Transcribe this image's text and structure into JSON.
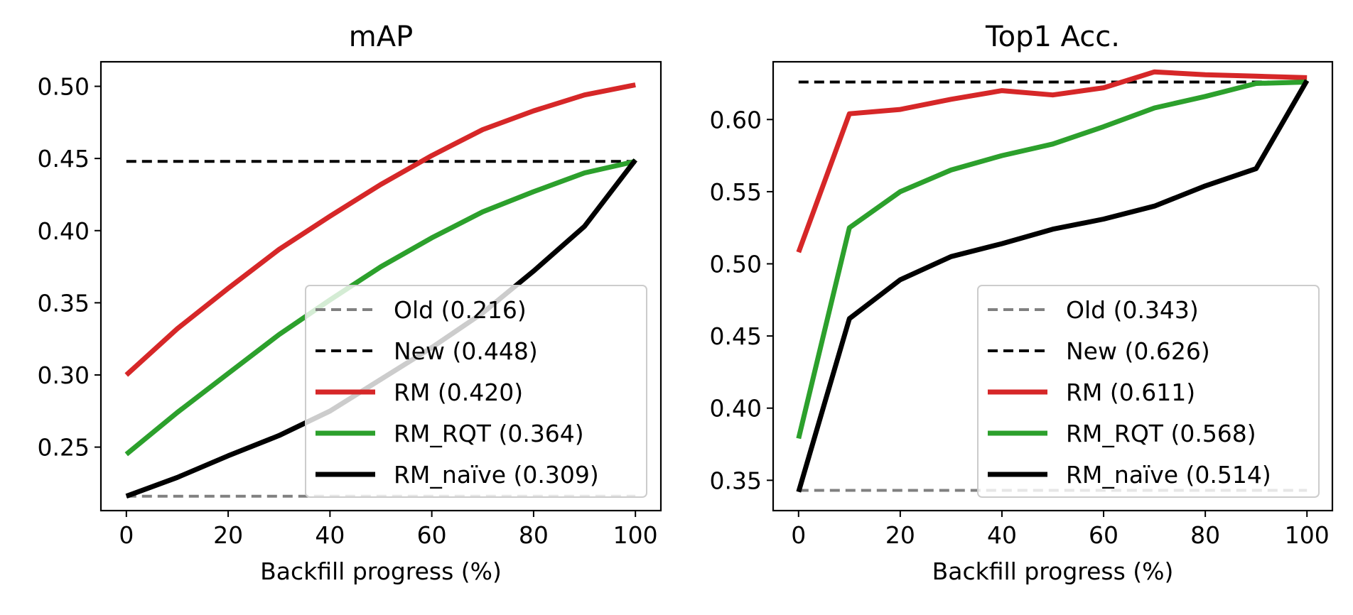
{
  "chart_data": [
    {
      "type": "line",
      "title": "mAP",
      "xlabel": "Backfill progress (%)",
      "ylabel": "",
      "xlim": [
        -5,
        105
      ],
      "ylim": [
        0.206,
        0.517
      ],
      "xticks": [
        0,
        20,
        40,
        60,
        80,
        100
      ],
      "xtick_labels": [
        "0",
        "20",
        "40",
        "60",
        "80",
        "100"
      ],
      "yticks": [
        0.25,
        0.3,
        0.35,
        0.4,
        0.45,
        0.5
      ],
      "ytick_labels": [
        "0.25",
        "0.30",
        "0.35",
        "0.40",
        "0.45",
        "0.50"
      ],
      "grid": false,
      "legend_position": "lower-right",
      "series": [
        {
          "name": "Old (0.216)",
          "color": "#808080",
          "style": "dashed",
          "width": "thin",
          "x": [
            0,
            100
          ],
          "y": [
            0.216,
            0.216
          ]
        },
        {
          "name": "New (0.448)",
          "color": "#000000",
          "style": "dashed",
          "width": "thin",
          "x": [
            0,
            100
          ],
          "y": [
            0.448,
            0.448
          ]
        },
        {
          "name": "RM (0.420)",
          "color": "#d62728",
          "style": "solid",
          "width": "thick",
          "x": [
            0,
            10,
            20,
            30,
            40,
            50,
            60,
            70,
            80,
            90,
            100
          ],
          "y": [
            0.3,
            0.332,
            0.36,
            0.387,
            0.41,
            0.432,
            0.452,
            0.47,
            0.483,
            0.494,
            0.501
          ]
        },
        {
          "name": "RM_RQT (0.364)",
          "color": "#2ca02c",
          "style": "solid",
          "width": "thick",
          "x": [
            0,
            10,
            20,
            30,
            40,
            50,
            60,
            70,
            80,
            90,
            100
          ],
          "y": [
            0.245,
            0.274,
            0.301,
            0.328,
            0.352,
            0.375,
            0.395,
            0.413,
            0.427,
            0.44,
            0.448
          ]
        },
        {
          "name": "RM_naïve (0.309)",
          "color": "#000000",
          "style": "solid",
          "width": "thick",
          "x": [
            0,
            10,
            20,
            30,
            40,
            50,
            60,
            70,
            80,
            90,
            100
          ],
          "y": [
            0.216,
            0.229,
            0.244,
            0.258,
            0.275,
            0.297,
            0.319,
            0.343,
            0.372,
            0.403,
            0.449
          ]
        }
      ]
    },
    {
      "type": "line",
      "title": "Top1 Acc.",
      "xlabel": "Backfill progress (%)",
      "ylabel": "",
      "xlim": [
        -5,
        105
      ],
      "ylim": [
        0.329,
        0.64
      ],
      "xticks": [
        0,
        20,
        40,
        60,
        80,
        100
      ],
      "xtick_labels": [
        "0",
        "20",
        "40",
        "60",
        "80",
        "100"
      ],
      "yticks": [
        0.35,
        0.4,
        0.45,
        0.5,
        0.55,
        0.6
      ],
      "ytick_labels": [
        "0.35",
        "0.40",
        "0.45",
        "0.50",
        "0.55",
        "0.60"
      ],
      "grid": false,
      "legend_position": "lower-right",
      "series": [
        {
          "name": "Old (0.343)",
          "color": "#808080",
          "style": "dashed",
          "width": "thin",
          "x": [
            0,
            100
          ],
          "y": [
            0.343,
            0.343
          ]
        },
        {
          "name": "New (0.626)",
          "color": "#000000",
          "style": "dashed",
          "width": "thin",
          "x": [
            0,
            100
          ],
          "y": [
            0.626,
            0.626
          ]
        },
        {
          "name": "RM (0.611)",
          "color": "#d62728",
          "style": "solid",
          "width": "thick",
          "x": [
            0,
            10,
            20,
            30,
            40,
            50,
            60,
            70,
            80,
            90,
            100
          ],
          "y": [
            0.508,
            0.604,
            0.607,
            0.614,
            0.62,
            0.617,
            0.622,
            0.633,
            0.631,
            0.63,
            0.629
          ]
        },
        {
          "name": "RM_RQT (0.568)",
          "color": "#2ca02c",
          "style": "solid",
          "width": "thick",
          "x": [
            0,
            10,
            20,
            30,
            40,
            50,
            60,
            70,
            80,
            90,
            100
          ],
          "y": [
            0.379,
            0.525,
            0.55,
            0.565,
            0.575,
            0.583,
            0.595,
            0.608,
            0.616,
            0.625,
            0.626
          ]
        },
        {
          "name": "RM_naïve (0.514)",
          "color": "#000000",
          "style": "solid",
          "width": "thick",
          "x": [
            0,
            10,
            20,
            30,
            40,
            50,
            60,
            70,
            80,
            90,
            100
          ],
          "y": [
            0.342,
            0.462,
            0.489,
            0.505,
            0.514,
            0.524,
            0.531,
            0.54,
            0.554,
            0.566,
            0.627
          ]
        }
      ]
    }
  ]
}
